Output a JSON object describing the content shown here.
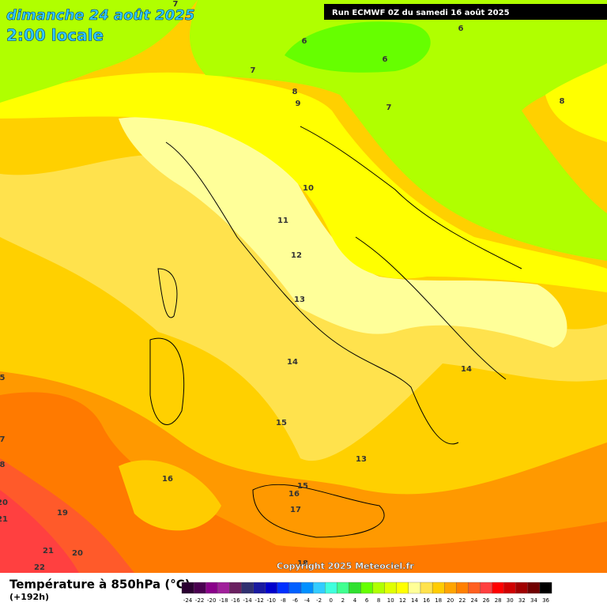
{
  "header": {
    "date": "dimanche 24 août 2025",
    "time": "2:00 locale",
    "run": "Run ECMWF 0Z du samedi 16 août 2025"
  },
  "map": {
    "contour_labels": [
      7,
      6,
      6,
      6,
      7,
      8,
      9,
      7,
      8,
      10,
      11,
      12,
      13,
      14,
      14,
      15,
      13,
      16,
      15,
      16,
      17,
      19,
      21,
      20,
      22,
      18,
      5,
      7,
      8,
      20,
      21
    ],
    "copyright": "Copyright 2025 Meteociel.fr"
  },
  "footer": {
    "title": "Température à 850hPa (°C)",
    "subtitle": "(+192h)",
    "colorbar_labels": [
      -24,
      -22,
      -20,
      -18,
      -16,
      -14,
      -12,
      -10,
      -8,
      -6,
      -4,
      -2,
      0,
      2,
      4,
      6,
      8,
      10,
      12,
      14,
      16,
      18,
      20,
      22,
      24,
      26,
      28,
      30,
      32,
      34,
      36
    ]
  }
}
